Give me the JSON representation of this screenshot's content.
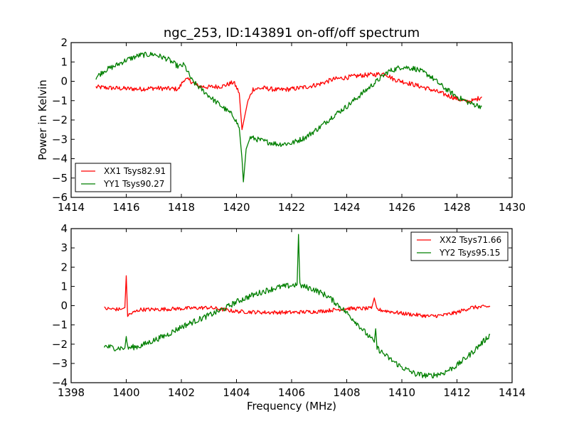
{
  "figure": {
    "title": "ngc_253, ID:143891 on-off/off spectrum",
    "shared_ylabel": "Power in Kelvin",
    "shared_xlabel": "Frequency (MHz)"
  },
  "chart_data": [
    {
      "type": "line",
      "title": "ngc_253, ID:143891 on-off/off spectrum",
      "xlabel": "",
      "ylabel": "Power in Kelvin",
      "xlim": [
        1414,
        1430
      ],
      "ylim": [
        -6,
        2
      ],
      "xticks": [
        1414,
        1416,
        1418,
        1420,
        1422,
        1424,
        1426,
        1428,
        1430
      ],
      "yticks": [
        2,
        1,
        0,
        -1,
        -2,
        -3,
        -4,
        -5,
        -6
      ],
      "grid": false,
      "legend": {
        "position": "lower-left"
      },
      "series": [
        {
          "name": "XX1 Tsys82.91",
          "color": "#ff0000",
          "noise": 0.12,
          "points": [
            [
              1414.9,
              -0.3
            ],
            [
              1415.5,
              -0.35
            ],
            [
              1416.0,
              -0.38
            ],
            [
              1416.5,
              -0.4
            ],
            [
              1417.0,
              -0.35
            ],
            [
              1417.5,
              -0.38
            ],
            [
              1417.9,
              -0.4
            ],
            [
              1418.1,
              0.1
            ],
            [
              1418.3,
              0.05
            ],
            [
              1418.6,
              -0.25
            ],
            [
              1419.0,
              -0.3
            ],
            [
              1419.5,
              -0.25
            ],
            [
              1419.9,
              -0.05
            ],
            [
              1420.1,
              -0.6
            ],
            [
              1420.2,
              -2.5
            ],
            [
              1420.3,
              -1.8
            ],
            [
              1420.4,
              -1.1
            ],
            [
              1420.6,
              -0.4
            ],
            [
              1421.0,
              -0.35
            ],
            [
              1421.5,
              -0.45
            ],
            [
              1422.0,
              -0.4
            ],
            [
              1422.5,
              -0.3
            ],
            [
              1423.0,
              -0.15
            ],
            [
              1423.5,
              0.1
            ],
            [
              1424.0,
              0.2
            ],
            [
              1424.5,
              0.3
            ],
            [
              1425.0,
              0.35
            ],
            [
              1425.4,
              0.4
            ],
            [
              1425.7,
              0.1
            ],
            [
              1426.0,
              0.0
            ],
            [
              1426.5,
              -0.2
            ],
            [
              1427.0,
              -0.4
            ],
            [
              1427.5,
              -0.65
            ],
            [
              1428.0,
              -0.9
            ],
            [
              1428.3,
              -1.05
            ],
            [
              1428.6,
              -1.0
            ],
            [
              1428.9,
              -0.8
            ]
          ]
        },
        {
          "name": "YY1 Tsys90.27",
          "color": "#007f00",
          "noise": 0.14,
          "points": [
            [
              1414.9,
              0.2
            ],
            [
              1415.2,
              0.55
            ],
            [
              1415.6,
              0.8
            ],
            [
              1416.0,
              1.1
            ],
            [
              1416.5,
              1.35
            ],
            [
              1417.0,
              1.4
            ],
            [
              1417.5,
              1.15
            ],
            [
              1417.9,
              0.75
            ],
            [
              1418.1,
              0.85
            ],
            [
              1418.4,
              0.0
            ],
            [
              1418.8,
              -0.5
            ],
            [
              1419.2,
              -1.0
            ],
            [
              1419.6,
              -1.45
            ],
            [
              1419.9,
              -1.8
            ],
            [
              1420.1,
              -2.4
            ],
            [
              1420.2,
              -4.0
            ],
            [
              1420.25,
              -5.2
            ],
            [
              1420.35,
              -3.5
            ],
            [
              1420.5,
              -2.9
            ],
            [
              1421.0,
              -3.1
            ],
            [
              1421.5,
              -3.25
            ],
            [
              1422.0,
              -3.2
            ],
            [
              1422.5,
              -2.9
            ],
            [
              1423.0,
              -2.4
            ],
            [
              1423.5,
              -1.8
            ],
            [
              1424.0,
              -1.3
            ],
            [
              1424.5,
              -0.7
            ],
            [
              1425.0,
              -0.1
            ],
            [
              1425.5,
              0.5
            ],
            [
              1426.0,
              0.75
            ],
            [
              1426.5,
              0.65
            ],
            [
              1427.0,
              0.3
            ],
            [
              1427.5,
              -0.3
            ],
            [
              1428.0,
              -0.8
            ],
            [
              1428.5,
              -1.15
            ],
            [
              1428.9,
              -1.3
            ]
          ]
        }
      ]
    },
    {
      "type": "line",
      "title": "",
      "xlabel": "Frequency (MHz)",
      "ylabel": "",
      "xlim": [
        1398,
        1414
      ],
      "ylim": [
        -4,
        4
      ],
      "xticks": [
        1398,
        1400,
        1402,
        1404,
        1406,
        1408,
        1410,
        1412,
        1414
      ],
      "yticks": [
        4,
        3,
        2,
        1,
        0,
        -1,
        -2,
        -3,
        -4
      ],
      "grid": false,
      "legend": {
        "position": "upper-right"
      },
      "series": [
        {
          "name": "XX2 Tsys71.66",
          "color": "#ff0000",
          "noise": 0.1,
          "points": [
            [
              1399.2,
              -0.15
            ],
            [
              1399.8,
              -0.2
            ],
            [
              1399.95,
              -0.1
            ],
            [
              1400.0,
              1.55
            ],
            [
              1400.05,
              -0.5
            ],
            [
              1400.5,
              -0.2
            ],
            [
              1401.0,
              -0.2
            ],
            [
              1402.0,
              -0.15
            ],
            [
              1403.0,
              -0.1
            ],
            [
              1403.5,
              -0.2
            ],
            [
              1404.0,
              -0.3
            ],
            [
              1405.0,
              -0.35
            ],
            [
              1406.0,
              -0.35
            ],
            [
              1407.0,
              -0.3
            ],
            [
              1408.0,
              -0.15
            ],
            [
              1408.9,
              -0.15
            ],
            [
              1409.0,
              0.4
            ],
            [
              1409.1,
              -0.2
            ],
            [
              1410.0,
              -0.4
            ],
            [
              1411.0,
              -0.55
            ],
            [
              1411.5,
              -0.5
            ],
            [
              1412.0,
              -0.35
            ],
            [
              1412.5,
              -0.1
            ],
            [
              1413.2,
              -0.05
            ]
          ]
        },
        {
          "name": "YY2 Tsys95.15",
          "color": "#007f00",
          "noise": 0.15,
          "points": [
            [
              1399.2,
              -2.1
            ],
            [
              1399.6,
              -2.2
            ],
            [
              1399.95,
              -2.2
            ],
            [
              1400.0,
              -1.6
            ],
            [
              1400.05,
              -2.2
            ],
            [
              1400.5,
              -2.1
            ],
            [
              1401.0,
              -1.8
            ],
            [
              1401.5,
              -1.5
            ],
            [
              1402.0,
              -1.1
            ],
            [
              1402.5,
              -0.8
            ],
            [
              1403.0,
              -0.5
            ],
            [
              1403.5,
              -0.2
            ],
            [
              1404.0,
              0.2
            ],
            [
              1404.5,
              0.5
            ],
            [
              1405.0,
              0.75
            ],
            [
              1405.5,
              0.95
            ],
            [
              1406.0,
              1.05
            ],
            [
              1406.2,
              1.1
            ],
            [
              1406.25,
              3.7
            ],
            [
              1406.3,
              1.05
            ],
            [
              1406.8,
              0.85
            ],
            [
              1407.3,
              0.5
            ],
            [
              1407.8,
              -0.1
            ],
            [
              1408.3,
              -0.8
            ],
            [
              1408.8,
              -1.6
            ],
            [
              1409.0,
              -1.9
            ],
            [
              1409.05,
              -1.2
            ],
            [
              1409.1,
              -2.2
            ],
            [
              1409.5,
              -2.7
            ],
            [
              1410.0,
              -3.2
            ],
            [
              1410.5,
              -3.55
            ],
            [
              1411.0,
              -3.65
            ],
            [
              1411.5,
              -3.5
            ],
            [
              1412.0,
              -3.1
            ],
            [
              1412.5,
              -2.5
            ],
            [
              1413.0,
              -1.8
            ],
            [
              1413.2,
              -1.5
            ]
          ]
        }
      ]
    }
  ]
}
